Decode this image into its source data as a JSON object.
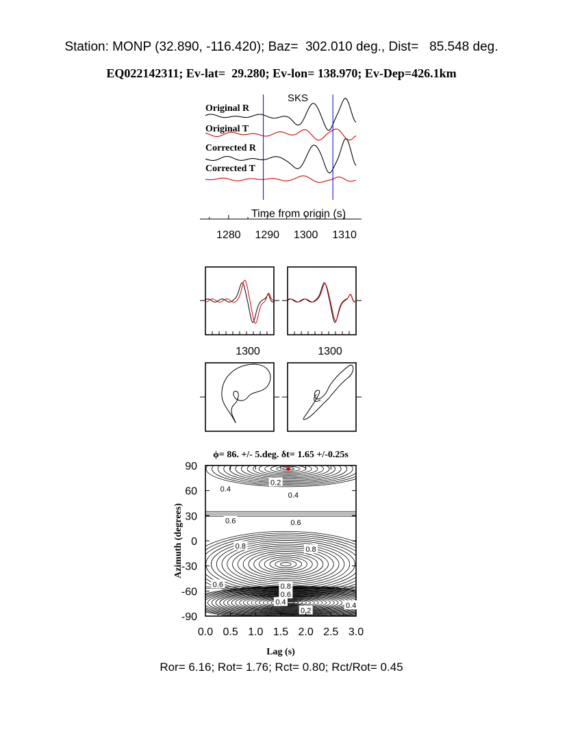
{
  "header": {
    "station_line": "Station: MONP (32.890, -116.420); Baz=  302.010 deg., Dist=   85.548 deg.",
    "event_line": "EQ022142311; Ev-lat=  29.280; Ev-lon= 138.970; Ev-Dep=426.1km"
  },
  "footer": {
    "stats_line": "Ror= 6.16; Rot= 1.76; Rct= 0.80; Rct/Rot= 0.45"
  },
  "colors": {
    "black": "#000000",
    "red": "#dd0000",
    "blue": "#0000cc"
  },
  "chart_data": [
    {
      "type": "line",
      "panel": "seismograms",
      "phase_label": "SKS",
      "trace_labels": [
        "Original R",
        "Original T",
        "Corrected R",
        "Corrected T"
      ],
      "xlabel": "Time from origin (s)",
      "xlim": [
        1274,
        1313
      ],
      "xticks": [
        1280,
        1290,
        1300,
        1310
      ],
      "window_start": 1289,
      "window_end": 1307
    },
    {
      "type": "line",
      "panel": "particle-waveform-original",
      "xticks": [
        1300
      ],
      "series": [
        {
          "color": "black"
        },
        {
          "color": "red"
        }
      ]
    },
    {
      "type": "line",
      "panel": "particle-waveform-corrected",
      "xticks": [
        1300
      ],
      "series": [
        {
          "color": "black"
        },
        {
          "color": "red"
        }
      ]
    },
    {
      "type": "line",
      "panel": "particle-motion-original"
    },
    {
      "type": "line",
      "panel": "particle-motion-corrected"
    },
    {
      "type": "heatmap",
      "panel": "energy-contour",
      "title": "ϕ= 86. +/- 5.deg. δt= 1.65 +/-0.25s",
      "xlabel": "Lag (s)",
      "ylabel": "Azimuth (degrees)",
      "xlim": [
        0.0,
        3.0
      ],
      "ylim": [
        -90,
        90
      ],
      "xticks": [
        "0.0",
        "0.5",
        "1.0",
        "1.5",
        "2.0",
        "2.5",
        "3.0"
      ],
      "yticks": [
        "90",
        "60",
        "30",
        "0",
        "-30",
        "-60",
        "-90"
      ],
      "best_fit": {
        "lag": 1.65,
        "azimuth": 86
      },
      "contour_labels": [
        {
          "text": "0.2",
          "lag": 1.4,
          "azimuth": 70
        },
        {
          "text": "0.4",
          "lag": 1.75,
          "azimuth": 55
        },
        {
          "text": "0.4",
          "lag": 0.4,
          "azimuth": 62
        },
        {
          "text": "0.6",
          "lag": 0.5,
          "azimuth": 24
        },
        {
          "text": "0.6",
          "lag": 1.8,
          "azimuth": 22
        },
        {
          "text": "0.8",
          "lag": 0.7,
          "azimuth": -6
        },
        {
          "text": "0.8",
          "lag": 2.1,
          "azimuth": -10
        },
        {
          "text": "0.6",
          "lag": 0.25,
          "azimuth": -52
        },
        {
          "text": "0.8",
          "lag": 1.6,
          "azimuth": -54
        },
        {
          "text": "0.6",
          "lag": 1.6,
          "azimuth": -64
        },
        {
          "text": "0.4",
          "lag": 1.5,
          "azimuth": -73
        },
        {
          "text": "0.2",
          "lag": 2.0,
          "azimuth": -83
        },
        {
          "text": "0.4",
          "lag": 2.9,
          "azimuth": -77
        }
      ]
    }
  ]
}
